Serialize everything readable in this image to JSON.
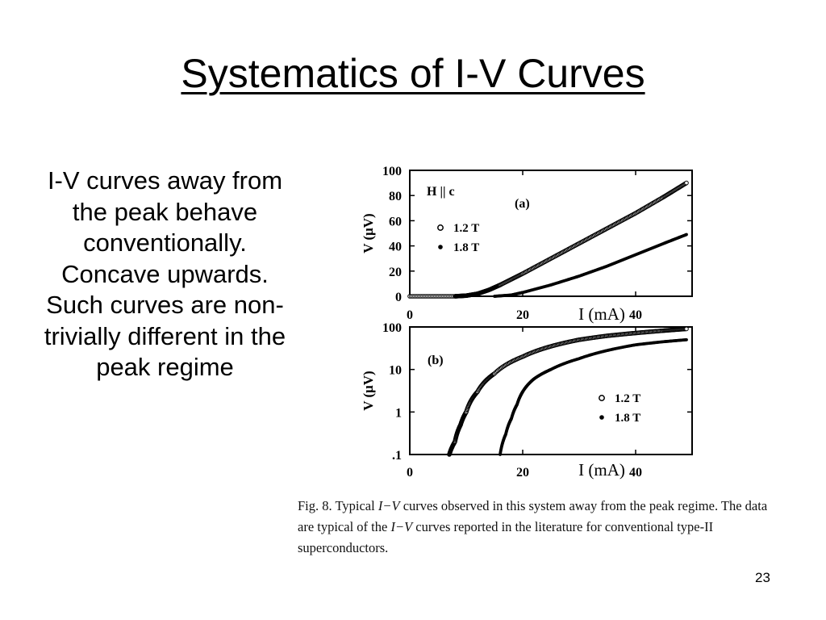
{
  "slide": {
    "title": "Systematics of I-V Curves",
    "body": "I-V curves away from the peak behave conventionally. Concave upwards. Such curves are non-trivially different in the peak regime",
    "page_number": "23"
  },
  "figure": {
    "caption_parts": {
      "prefix": "Fig. 8. Typical ",
      "iv1": "I−V",
      "middle": " curves observed in this system away from the peak regime. The data are typical of the ",
      "iv2": "I−V",
      "suffix": " curves reported in the literature for conventional type-II superconductors."
    }
  },
  "chart_data": [
    {
      "type": "scatter",
      "panel_label": "(a)",
      "annotation": "H || c",
      "xlabel": "I (mA)",
      "ylabel": "V (μV)",
      "xlim": [
        0,
        50
      ],
      "ylim": [
        0,
        100
      ],
      "xticks": [
        "0",
        "20",
        "40"
      ],
      "yticks": [
        "0",
        "20",
        "40",
        "60",
        "80",
        "100"
      ],
      "legend": {
        "position": "center-left",
        "entries": [
          {
            "marker": "open",
            "label": "1.2 T"
          },
          {
            "marker": "filled",
            "label": "1.8 T"
          }
        ]
      },
      "series": [
        {
          "name": "1.2 T",
          "marker": "open",
          "x": [
            0,
            8,
            10,
            12,
            14,
            16,
            20,
            25,
            30,
            35,
            40,
            45,
            49
          ],
          "y": [
            0,
            0,
            0.5,
            2,
            5,
            9,
            18,
            30,
            42,
            54,
            66,
            79,
            90
          ]
        },
        {
          "name": "1.8 T",
          "marker": "filled",
          "x": [
            15,
            18,
            20,
            25,
            30,
            35,
            40,
            45,
            49
          ],
          "y": [
            0,
            1,
            3,
            9,
            16,
            24,
            33,
            42,
            49
          ]
        }
      ]
    },
    {
      "type": "scatter",
      "panel_label": "(b)",
      "xlabel": "I (mA)",
      "ylabel": "V (μV)",
      "yscale": "log",
      "xlim": [
        0,
        50
      ],
      "ylim": [
        0.1,
        100
      ],
      "xticks": [
        "0",
        "20",
        "40"
      ],
      "yticks": [
        ".1",
        "1",
        "10",
        "100"
      ],
      "legend": {
        "position": "bottom-right",
        "entries": [
          {
            "marker": "open",
            "label": "1.2 T"
          },
          {
            "marker": "filled",
            "label": "1.8 T"
          }
        ]
      },
      "series": [
        {
          "name": "1.2 T",
          "marker": "open",
          "x": [
            7,
            8,
            9,
            10,
            12,
            15,
            20,
            25,
            30,
            35,
            40,
            45,
            49
          ],
          "y": [
            0.1,
            0.2,
            0.5,
            1,
            3,
            8,
            20,
            35,
            50,
            62,
            72,
            82,
            90
          ]
        },
        {
          "name": "1.8 T",
          "marker": "filled",
          "x": [
            16,
            17,
            18,
            19,
            20,
            22,
            25,
            30,
            35,
            40,
            45,
            49
          ],
          "y": [
            0.1,
            0.3,
            0.7,
            1.5,
            3,
            6,
            10,
            18,
            28,
            38,
            45,
            50
          ]
        }
      ]
    }
  ]
}
